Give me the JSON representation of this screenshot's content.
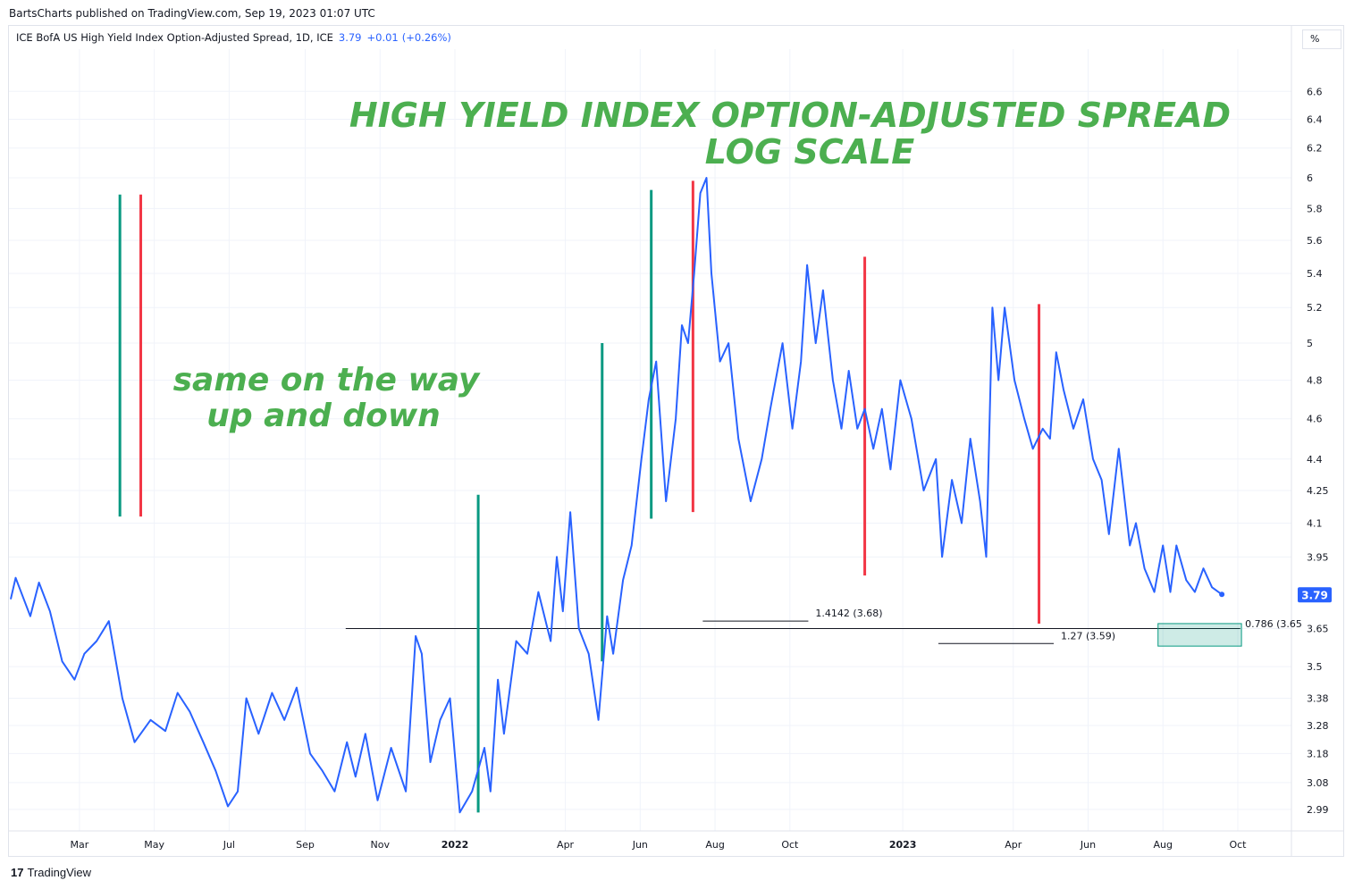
{
  "header": {
    "published": "BartsCharts published on TradingView.com, Sep 19, 2023 01:07 UTC",
    "symbol": "ICE BofA US High Yield Index Option-Adjusted Spread, 1D, ICE",
    "last": "3.79",
    "change": "+0.01",
    "change_pct": "(+0.26%)",
    "scale_button": "%"
  },
  "footer": {
    "brand": "TradingView",
    "logo": "tradingview-logo"
  },
  "colors": {
    "line": "#2962ff",
    "green": "#4caf50",
    "bar_green": "#089981",
    "bar_red": "#f23645",
    "box": "#089981"
  },
  "chart_data": {
    "type": "line",
    "yscale": "log",
    "grid": true,
    "title_lines": [
      "HIGH YIELD INDEX OPTION-ADJUSTED SPREAD",
      "LOG SCALE"
    ],
    "annotation_lines": [
      "same on the way",
      "up and down"
    ],
    "y_ticks": [
      "6.6",
      "6.4",
      "6.2",
      "6",
      "5.8",
      "5.6",
      "5.4",
      "5.2",
      "5",
      "4.8",
      "4.6",
      "4.4",
      "4.25",
      "4.1",
      "3.95",
      "3.65",
      "3.5",
      "3.38",
      "3.28",
      "3.18",
      "3.08",
      "2.99"
    ],
    "x_ticks": [
      [
        "2021-03-01",
        "Mar",
        false
      ],
      [
        "2021-05-01",
        "May",
        false
      ],
      [
        "2021-07-01",
        "Jul",
        false
      ],
      [
        "2021-09-01",
        "Sep",
        false
      ],
      [
        "2021-11-01",
        "Nov",
        false
      ],
      [
        "2022-01-01",
        "2022",
        true
      ],
      [
        "2022-04-01",
        "Apr",
        false
      ],
      [
        "2022-06-01",
        "Jun",
        false
      ],
      [
        "2022-08-01",
        "Aug",
        false
      ],
      [
        "2022-10-01",
        "Oct",
        false
      ],
      [
        "2023-01-01",
        "2023",
        true
      ],
      [
        "2023-04-01",
        "Apr",
        false
      ],
      [
        "2023-06-01",
        "Jun",
        false
      ],
      [
        "2023-08-01",
        "Aug",
        false
      ],
      [
        "2023-10-01",
        "Oct",
        false
      ]
    ],
    "last_price": "3.79",
    "series": [
      [
        "2021-01-04",
        3.77
      ],
      [
        "2021-01-08",
        3.86
      ],
      [
        "2021-01-20",
        3.7
      ],
      [
        "2021-01-27",
        3.84
      ],
      [
        "2021-02-05",
        3.72
      ],
      [
        "2021-02-15",
        3.52
      ],
      [
        "2021-02-25",
        3.45
      ],
      [
        "2021-03-05",
        3.55
      ],
      [
        "2021-03-15",
        3.6
      ],
      [
        "2021-03-25",
        3.68
      ],
      [
        "2021-04-05",
        3.38
      ],
      [
        "2021-04-15",
        3.22
      ],
      [
        "2021-04-28",
        3.3
      ],
      [
        "2021-05-10",
        3.26
      ],
      [
        "2021-05-20",
        3.4
      ],
      [
        "2021-05-30",
        3.33
      ],
      [
        "2021-06-10",
        3.22
      ],
      [
        "2021-06-20",
        3.12
      ],
      [
        "2021-06-30",
        3.0
      ],
      [
        "2021-07-08",
        3.05
      ],
      [
        "2021-07-15",
        3.38
      ],
      [
        "2021-07-25",
        3.25
      ],
      [
        "2021-08-05",
        3.4
      ],
      [
        "2021-08-15",
        3.3
      ],
      [
        "2021-08-25",
        3.42
      ],
      [
        "2021-09-05",
        3.18
      ],
      [
        "2021-09-15",
        3.12
      ],
      [
        "2021-09-25",
        3.05
      ],
      [
        "2021-10-05",
        3.22
      ],
      [
        "2021-10-12",
        3.1
      ],
      [
        "2021-10-20",
        3.25
      ],
      [
        "2021-10-30",
        3.02
      ],
      [
        "2021-11-10",
        3.2
      ],
      [
        "2021-11-22",
        3.05
      ],
      [
        "2021-11-30",
        3.62
      ],
      [
        "2021-12-05",
        3.55
      ],
      [
        "2021-12-12",
        3.15
      ],
      [
        "2021-12-20",
        3.3
      ],
      [
        "2021-12-28",
        3.38
      ],
      [
        "2022-01-05",
        2.98
      ],
      [
        "2022-01-15",
        3.05
      ],
      [
        "2022-01-25",
        3.2
      ],
      [
        "2022-01-30",
        3.05
      ],
      [
        "2022-02-05",
        3.45
      ],
      [
        "2022-02-10",
        3.25
      ],
      [
        "2022-02-20",
        3.6
      ],
      [
        "2022-03-01",
        3.55
      ],
      [
        "2022-03-10",
        3.8
      ],
      [
        "2022-03-20",
        3.6
      ],
      [
        "2022-03-25",
        3.95
      ],
      [
        "2022-03-30",
        3.72
      ],
      [
        "2022-04-05",
        4.15
      ],
      [
        "2022-04-12",
        3.65
      ],
      [
        "2022-04-20",
        3.55
      ],
      [
        "2022-04-28",
        3.3
      ],
      [
        "2022-05-05",
        3.7
      ],
      [
        "2022-05-10",
        3.55
      ],
      [
        "2022-05-18",
        3.85
      ],
      [
        "2022-05-25",
        4.0
      ],
      [
        "2022-06-02",
        4.4
      ],
      [
        "2022-06-08",
        4.7
      ],
      [
        "2022-06-14",
        4.9
      ],
      [
        "2022-06-22",
        4.2
      ],
      [
        "2022-06-30",
        4.6
      ],
      [
        "2022-07-05",
        5.1
      ],
      [
        "2022-07-10",
        5.0
      ],
      [
        "2022-07-15",
        5.4
      ],
      [
        "2022-07-20",
        5.9
      ],
      [
        "2022-07-25",
        6.0
      ],
      [
        "2022-07-29",
        5.4
      ],
      [
        "2022-08-05",
        4.9
      ],
      [
        "2022-08-12",
        5.0
      ],
      [
        "2022-08-20",
        4.5
      ],
      [
        "2022-08-30",
        4.2
      ],
      [
        "2022-09-08",
        4.4
      ],
      [
        "2022-09-15",
        4.65
      ],
      [
        "2022-09-25",
        5.0
      ],
      [
        "2022-10-03",
        4.55
      ],
      [
        "2022-10-10",
        4.9
      ],
      [
        "2022-10-15",
        5.45
      ],
      [
        "2022-10-22",
        5.0
      ],
      [
        "2022-10-28",
        5.3
      ],
      [
        "2022-11-05",
        4.8
      ],
      [
        "2022-11-12",
        4.55
      ],
      [
        "2022-11-18",
        4.85
      ],
      [
        "2022-11-25",
        4.55
      ],
      [
        "2022-12-01",
        4.65
      ],
      [
        "2022-12-08",
        4.45
      ],
      [
        "2022-12-15",
        4.65
      ],
      [
        "2022-12-22",
        4.35
      ],
      [
        "2022-12-30",
        4.8
      ],
      [
        "2023-01-08",
        4.6
      ],
      [
        "2023-01-18",
        4.25
      ],
      [
        "2023-01-28",
        4.4
      ],
      [
        "2023-02-02",
        3.95
      ],
      [
        "2023-02-10",
        4.3
      ],
      [
        "2023-02-18",
        4.1
      ],
      [
        "2023-02-25",
        4.5
      ],
      [
        "2023-03-05",
        4.2
      ],
      [
        "2023-03-10",
        3.95
      ],
      [
        "2023-03-15",
        5.2
      ],
      [
        "2023-03-20",
        4.8
      ],
      [
        "2023-03-25",
        5.2
      ],
      [
        "2023-04-02",
        4.8
      ],
      [
        "2023-04-10",
        4.6
      ],
      [
        "2023-04-17",
        4.45
      ],
      [
        "2023-04-25",
        4.55
      ],
      [
        "2023-05-01",
        4.5
      ],
      [
        "2023-05-06",
        4.95
      ],
      [
        "2023-05-12",
        4.75
      ],
      [
        "2023-05-20",
        4.55
      ],
      [
        "2023-05-28",
        4.7
      ],
      [
        "2023-06-05",
        4.4
      ],
      [
        "2023-06-12",
        4.3
      ],
      [
        "2023-06-18",
        4.05
      ],
      [
        "2023-06-26",
        4.45
      ],
      [
        "2023-07-05",
        4.0
      ],
      [
        "2023-07-10",
        4.1
      ],
      [
        "2023-07-17",
        3.9
      ],
      [
        "2023-07-25",
        3.8
      ],
      [
        "2023-08-01",
        4.0
      ],
      [
        "2023-08-07",
        3.8
      ],
      [
        "2023-08-12",
        4.0
      ],
      [
        "2023-08-20",
        3.85
      ],
      [
        "2023-08-27",
        3.8
      ],
      [
        "2023-09-03",
        3.9
      ],
      [
        "2023-09-10",
        3.82
      ],
      [
        "2023-09-18",
        3.79
      ]
    ],
    "vertical_markers": [
      [
        "2021-04-03",
        5.89,
        4.13,
        "green"
      ],
      [
        "2021-04-20",
        5.89,
        4.13,
        "red"
      ],
      [
        "2022-01-20",
        4.23,
        2.98,
        "green"
      ],
      [
        "2022-05-01",
        5.0,
        3.52,
        "green"
      ],
      [
        "2022-06-10",
        5.92,
        4.12,
        "green"
      ],
      [
        "2022-07-14",
        5.98,
        4.15,
        "red"
      ],
      [
        "2022-12-01",
        5.5,
        3.87,
        "red"
      ],
      [
        "2023-04-22",
        5.22,
        3.67,
        "red"
      ]
    ],
    "horizontal_line": {
      "value": 3.65,
      "from": "2021-10-04",
      "to": "2023-10-03"
    },
    "fib_levels": [
      {
        "label": "1.4142 (3.68)",
        "value": 3.68,
        "from": "2022-07-22",
        "to": "2022-10-16"
      },
      {
        "label": "1.27 (3.59)",
        "value": 3.59,
        "from": "2023-01-30",
        "to": "2023-05-04"
      },
      {
        "label": "0.786 (3.65",
        "value_top": 3.67,
        "value_bottom": 3.58,
        "from": "2023-07-28",
        "to": "2023-10-04"
      }
    ]
  }
}
